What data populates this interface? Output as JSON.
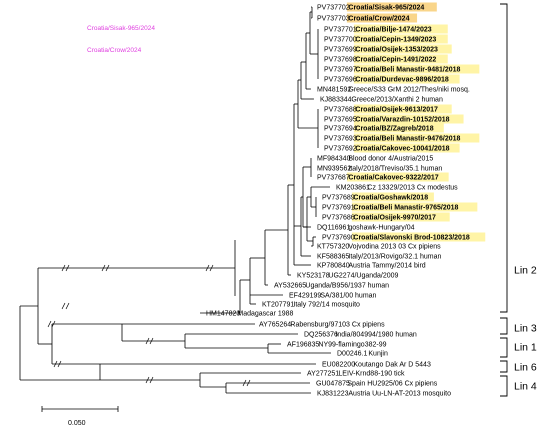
{
  "colors": {
    "highlight_yellow": "#fff4a6",
    "highlight_orange": "#f9d58a",
    "ghost_magenta": "#e040e0"
  },
  "ghost_labels": [
    "Croatia/Sisak-965/2024",
    "Croatia/Crow/2024"
  ],
  "tips": [
    {
      "acc": "PV737702",
      "name": "Croatia/Sisak-965/2024",
      "hl": "orange"
    },
    {
      "acc": "PV737703",
      "name": "Croatia/Crow/2024",
      "hl": "orange"
    },
    {
      "acc": "PV737701",
      "name": "Croatia/Bilje-1474/2023",
      "hl": "yellow"
    },
    {
      "acc": "PV737700",
      "name": "Croatia/Cepin-1349/2023",
      "hl": "yellow"
    },
    {
      "acc": "PV737699",
      "name": "Croatia/Osijek-1353/2023",
      "hl": "yellow"
    },
    {
      "acc": "PV737698",
      "name": "Croatia/Cepin-1491/2022",
      "hl": "yellow"
    },
    {
      "acc": "PV737697",
      "name": "Croatia/Beli Manastir-9481/2018",
      "hl": "yellow"
    },
    {
      "acc": "PV737696",
      "name": "Croatia/Durdevac-9896/2018",
      "hl": "yellow"
    },
    {
      "acc": "MN481592",
      "name": "Greece/S33 GrM 2012/Thes/niki mosq.",
      "hl": ""
    },
    {
      "acc": "KJ883344",
      "name": "Greece/2013/Xanthi 2 human",
      "hl": ""
    },
    {
      "acc": "PV737688",
      "name": "Croatia/Osijek-9613/2017",
      "hl": "yellow"
    },
    {
      "acc": "PV737695",
      "name": "Croatia/Varazdin-10152/2018",
      "hl": "yellow"
    },
    {
      "acc": "PV737694",
      "name": "Croatia/BZ/Zagreb/2018",
      "hl": "yellow"
    },
    {
      "acc": "PV737693",
      "name": "Croatia/Beli Manastir-9476/2018",
      "hl": "yellow"
    },
    {
      "acc": "PV737692",
      "name": "Croatia/Cakovec-10041/2018",
      "hl": "yellow"
    },
    {
      "acc": "MF984340",
      "name": "Blood donor 4/Austria/2015",
      "hl": ""
    },
    {
      "acc": "MN939562",
      "name": "Italy/2018/Treviso/35.1 human",
      "hl": ""
    },
    {
      "acc": "PV737687",
      "name": "Croatia/Cakovec-9322/2017",
      "hl": "yellow"
    },
    {
      "acc": "KM203861",
      "name": "Cz 13329/2013 Cx modestus",
      "hl": ""
    },
    {
      "acc": "PV737689",
      "name": "Croatia/Goshawk/2018",
      "hl": "yellow"
    },
    {
      "acc": "PV737691",
      "name": "Croatia/Beli Manastir-9765/2018",
      "hl": "yellow"
    },
    {
      "acc": "PV737686",
      "name": "Croatia/Osijek-9970/2017",
      "hl": "yellow"
    },
    {
      "acc": "DQ116961",
      "name": "goshawk-Hungary/04",
      "hl": ""
    },
    {
      "acc": "PV737690",
      "name": "Croatia/Slavonski Brod-10823/2018",
      "hl": "yellow"
    },
    {
      "acc": "KT757320",
      "name": "Vojvodina 2013 03 Cx pipiens",
      "hl": ""
    },
    {
      "acc": "KF588365",
      "name": "Italy/2013/Rovigo/32.1 human",
      "hl": ""
    },
    {
      "acc": "KP780840",
      "name": "Austria Tammy/2014 bird",
      "hl": ""
    },
    {
      "acc": "KY523178",
      "name": "UG2274/Uganda/2009",
      "hl": ""
    },
    {
      "acc": "AY532665",
      "name": "Uganda/B956/1937 human",
      "hl": ""
    },
    {
      "acc": "EF429199",
      "name": "SA/381/00 human",
      "hl": ""
    },
    {
      "acc": "KT207791",
      "name": "Italy 792/14 mosquito",
      "hl": ""
    },
    {
      "acc": "HM147823",
      "name": "Madagascar 1988",
      "hl": ""
    },
    {
      "acc": "AY765264",
      "name": "Rabensburg/97103 Cx pipiens",
      "hl": ""
    },
    {
      "acc": "DQ256376",
      "name": "India/804994/1980 human",
      "hl": ""
    },
    {
      "acc": "AF196835",
      "name": "NY99-flamingo382-99",
      "hl": ""
    },
    {
      "acc": "D00246.1",
      "name": "Kunjin",
      "hl": ""
    },
    {
      "acc": "EU082200",
      "name": "Koutango Dak Ar D 5443",
      "hl": ""
    },
    {
      "acc": "AY277251",
      "name": "LEIV-Krnd88-190 tick",
      "hl": ""
    },
    {
      "acc": "GU047875",
      "name": "Spain HU2925/06 Cx pipiens",
      "hl": ""
    },
    {
      "acc": "KJ831223",
      "name": "Austria Uu-LN-AT-2013 mosquito",
      "hl": ""
    }
  ],
  "lineages": [
    "Lin 2",
    "Lin 3",
    "Lin 1",
    "Lin 6",
    "Lin 4"
  ],
  "scale": {
    "label": "0.050"
  }
}
